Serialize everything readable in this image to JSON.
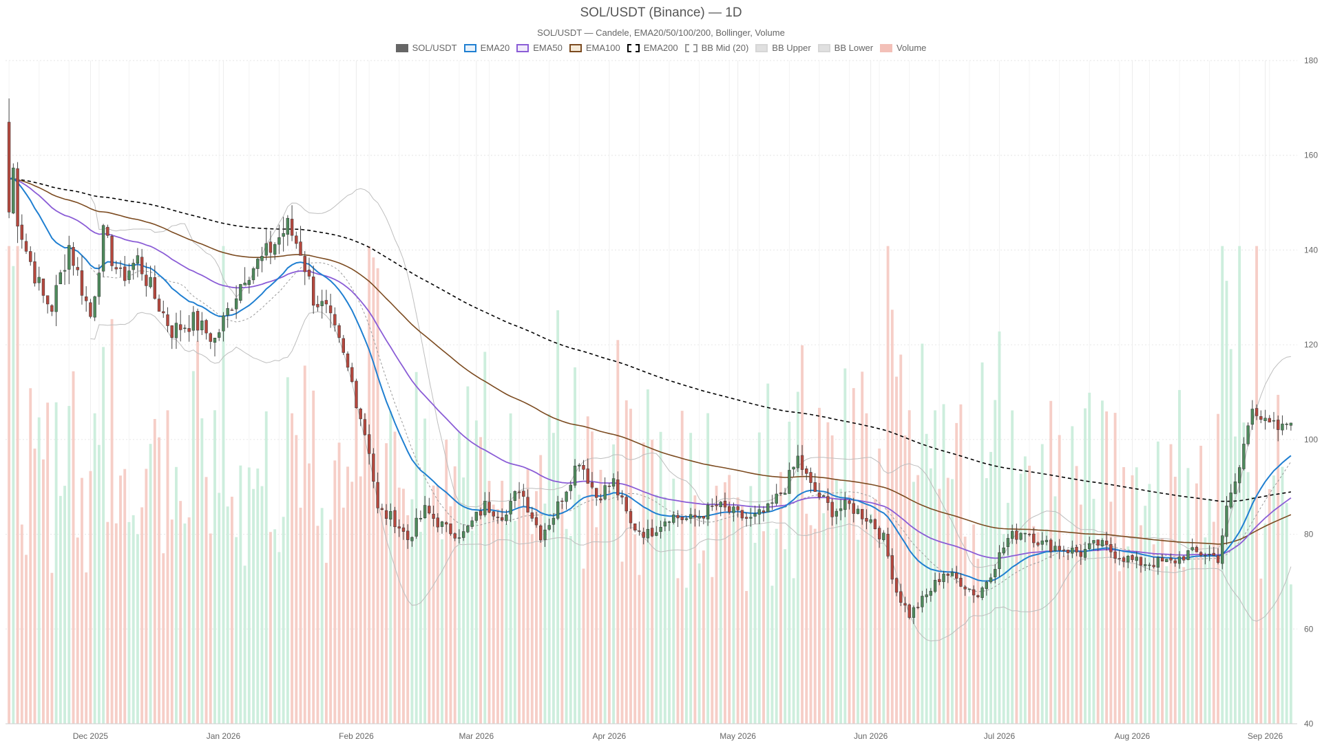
{
  "chart_data": {
    "type": "candlestick",
    "title": "SOL/USDT (Binance) — 1D",
    "subtitle": "SOL/USDT — Candele, EMA20/50/100/200, Bollinger, Volume",
    "legend": [
      {
        "name": "SOL/USDT",
        "color": "#666666",
        "style": "solid-fill"
      },
      {
        "name": "EMA20",
        "color": "#1f7fd1",
        "style": "line"
      },
      {
        "name": "EMA50",
        "color": "#8a5cd6",
        "style": "line"
      },
      {
        "name": "EMA100",
        "color": "#7b4a1f",
        "style": "line"
      },
      {
        "name": "EMA200",
        "color": "#000000",
        "style": "dashed"
      },
      {
        "name": "BB Mid (20)",
        "color": "#999999",
        "style": "dashed"
      },
      {
        "name": "BB Upper",
        "color": "#bbbbbb",
        "style": "line"
      },
      {
        "name": "BB Lower",
        "color": "#bbbbbb",
        "style": "line"
      },
      {
        "name": "Volume",
        "color": "#f3c0b8",
        "style": "bar"
      }
    ],
    "colors": {
      "up": "#4e8a5c",
      "down": "#b5483e",
      "volume_up": "#cdeedd",
      "volume_down": "#f6cec7"
    },
    "x_ticks": [
      "Dec 2025",
      "Jan 2026",
      "Feb 2026",
      "Mar 2026",
      "Apr 2026",
      "May 2026",
      "Jun 2026",
      "Jul 2026",
      "Aug 2026",
      "Sep 2026"
    ],
    "y_ticks": [
      40,
      60,
      80,
      100,
      120,
      140,
      160,
      180
    ],
    "ylim": [
      40,
      180
    ],
    "y_axis_position": "right",
    "grid": true,
    "legend_position": "top-center",
    "start_date": "2025-11-12",
    "anchors": [
      [
        "2025-11-12",
        167
      ],
      [
        "2025-11-14",
        147
      ],
      [
        "2025-11-16",
        140
      ],
      [
        "2025-11-20",
        130
      ],
      [
        "2025-11-22",
        128
      ],
      [
        "2025-11-26",
        141
      ],
      [
        "2025-12-01",
        126
      ],
      [
        "2025-12-04",
        143
      ],
      [
        "2025-12-08",
        134
      ],
      [
        "2025-12-12",
        138
      ],
      [
        "2025-12-16",
        130
      ],
      [
        "2025-12-20",
        123
      ],
      [
        "2025-12-25",
        125
      ],
      [
        "2025-12-30",
        121
      ],
      [
        "2026-01-02",
        127
      ],
      [
        "2026-01-06",
        135
      ],
      [
        "2026-01-10",
        138
      ],
      [
        "2026-01-16",
        145
      ],
      [
        "2026-01-19",
        140
      ],
      [
        "2026-01-22",
        130
      ],
      [
        "2026-01-25",
        127
      ],
      [
        "2026-01-28",
        120
      ],
      [
        "2026-01-31",
        112
      ],
      [
        "2026-02-04",
        98
      ],
      [
        "2026-02-06",
        85
      ],
      [
        "2026-02-10",
        83
      ],
      [
        "2026-02-13",
        79
      ],
      [
        "2026-02-17",
        85
      ],
      [
        "2026-02-22",
        81
      ],
      [
        "2026-02-26",
        80
      ],
      [
        "2026-03-03",
        86
      ],
      [
        "2026-03-08",
        84
      ],
      [
        "2026-03-11",
        90
      ],
      [
        "2026-03-16",
        80
      ],
      [
        "2026-03-19",
        84
      ],
      [
        "2026-03-25",
        96
      ],
      [
        "2026-03-29",
        88
      ],
      [
        "2026-04-02",
        91
      ],
      [
        "2026-04-06",
        82
      ],
      [
        "2026-04-10",
        80
      ],
      [
        "2026-04-15",
        84
      ],
      [
        "2026-04-20",
        83
      ],
      [
        "2026-04-26",
        86
      ],
      [
        "2026-05-01",
        84
      ],
      [
        "2026-05-04",
        83
      ],
      [
        "2026-05-08",
        85
      ],
      [
        "2026-05-12",
        90
      ],
      [
        "2026-05-15",
        96
      ],
      [
        "2026-05-18",
        90
      ],
      [
        "2026-05-23",
        85
      ],
      [
        "2026-05-27",
        86
      ],
      [
        "2026-06-01",
        83
      ],
      [
        "2026-06-04",
        79
      ],
      [
        "2026-06-07",
        68
      ],
      [
        "2026-06-10",
        63
      ],
      [
        "2026-06-14",
        67
      ],
      [
        "2026-06-18",
        72
      ],
      [
        "2026-06-22",
        70
      ],
      [
        "2026-06-26",
        67
      ],
      [
        "2026-06-29",
        72
      ],
      [
        "2026-07-03",
        79
      ],
      [
        "2026-07-07",
        81
      ],
      [
        "2026-07-11",
        78
      ],
      [
        "2026-07-16",
        77
      ],
      [
        "2026-07-20",
        76
      ],
      [
        "2026-07-24",
        78
      ],
      [
        "2026-07-28",
        76
      ],
      [
        "2026-08-02",
        74
      ],
      [
        "2026-08-06",
        74
      ],
      [
        "2026-08-10",
        74
      ],
      [
        "2026-08-14",
        76
      ],
      [
        "2026-08-18",
        76
      ],
      [
        "2026-08-21",
        75
      ],
      [
        "2026-08-23",
        85
      ],
      [
        "2026-08-26",
        94
      ],
      [
        "2026-08-29",
        108
      ],
      [
        "2026-09-01",
        103
      ],
      [
        "2026-09-05",
        102
      ],
      [
        "2026-09-07",
        105
      ]
    ],
    "ema_start": {
      "EMA20": 155,
      "EMA50": 155,
      "EMA100": 155,
      "EMA200": 155
    }
  }
}
